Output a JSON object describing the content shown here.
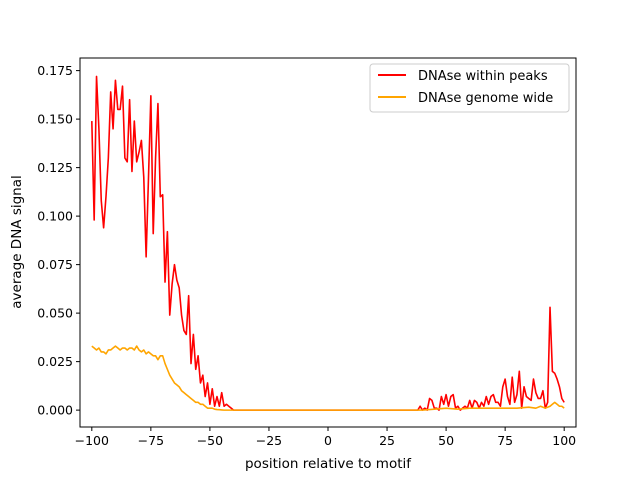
{
  "chart_data": {
    "type": "line",
    "title": "",
    "xlabel": "position relative to motif",
    "ylabel": "average DNA signal",
    "xlim": [
      -105,
      105
    ],
    "ylim": [
      -0.0087,
      0.1815
    ],
    "xticks": [
      -100,
      -75,
      -50,
      -25,
      0,
      25,
      50,
      75,
      100
    ],
    "xtick_labels": [
      "−100",
      "−75",
      "−50",
      "−25",
      "0",
      "25",
      "50",
      "75",
      "100"
    ],
    "yticks": [
      0.0,
      0.025,
      0.05,
      0.075,
      0.1,
      0.125,
      0.15,
      0.175
    ],
    "ytick_labels": [
      "0.000",
      "0.025",
      "0.050",
      "0.075",
      "0.100",
      "0.125",
      "0.150",
      "0.175"
    ],
    "grid": false,
    "legend_position": "top-right",
    "series": [
      {
        "name": "DNAse within peaks",
        "color": "#ff0000",
        "x": [
          -100,
          -99,
          -98,
          -97,
          -96,
          -95,
          -94,
          -93,
          -92,
          -91,
          -90,
          -89,
          -88,
          -87,
          -86,
          -85,
          -84,
          -83,
          -82,
          -81,
          -80,
          -79,
          -78,
          -77,
          -76,
          -75,
          -74,
          -73,
          -72,
          -71,
          -70,
          -69,
          -68,
          -67,
          -66,
          -65,
          -64,
          -63,
          -62,
          -61,
          -60,
          -59,
          -58,
          -57,
          -56,
          -55,
          -54,
          -53,
          -52,
          -51,
          -50,
          -49,
          -48,
          -47,
          -46,
          -45,
          -44,
          -43,
          -42,
          -41,
          -40,
          -39,
          -38,
          -37,
          -36,
          -35,
          -30,
          -20,
          -10,
          0,
          10,
          20,
          30,
          35,
          36,
          37,
          38,
          39,
          40,
          41,
          42,
          43,
          44,
          45,
          46,
          47,
          48,
          49,
          50,
          51,
          52,
          53,
          54,
          55,
          56,
          57,
          58,
          59,
          60,
          61,
          62,
          63,
          64,
          65,
          66,
          67,
          68,
          69,
          70,
          71,
          72,
          73,
          74,
          75,
          76,
          77,
          78,
          79,
          80,
          81,
          82,
          83,
          84,
          85,
          86,
          87,
          88,
          89,
          90,
          91,
          92,
          93,
          94,
          95,
          96,
          97,
          98,
          99,
          100
        ],
        "y": [
          0.149,
          0.098,
          0.172,
          0.145,
          0.108,
          0.094,
          0.11,
          0.13,
          0.164,
          0.145,
          0.17,
          0.155,
          0.155,
          0.167,
          0.13,
          0.128,
          0.16,
          0.123,
          0.149,
          0.128,
          0.133,
          0.139,
          0.12,
          0.079,
          0.12,
          0.162,
          0.091,
          0.13,
          0.158,
          0.11,
          0.111,
          0.066,
          0.092,
          0.049,
          0.065,
          0.075,
          0.067,
          0.063,
          0.049,
          0.041,
          0.039,
          0.059,
          0.024,
          0.039,
          0.021,
          0.028,
          0.014,
          0.018,
          0.007,
          0.014,
          0.003,
          0.011,
          0.002,
          0.007,
          0.002,
          0.009,
          0.002,
          0.003,
          0.002,
          0.001,
          0.0,
          0.0,
          0.0,
          0.0,
          0.0,
          0.0,
          0.0,
          0.0,
          0.0,
          0.0,
          0.0,
          0.0,
          0.0,
          0.0,
          0.0,
          0.0,
          0.0,
          0.002,
          0.0,
          0.001,
          0.0,
          0.006,
          0.005,
          0.001,
          0.001,
          0.0,
          0.007,
          0.003,
          0.008,
          0.002,
          0.007,
          0.008,
          0.001,
          0.002,
          0.0,
          0.001,
          0.002,
          0.001,
          0.005,
          0.001,
          0.005,
          0.004,
          0.001,
          0.004,
          0.002,
          0.007,
          0.003,
          0.007,
          0.008,
          0.004,
          0.004,
          0.002,
          0.012,
          0.016,
          0.007,
          0.003,
          0.017,
          0.004,
          0.008,
          0.02,
          0.001,
          0.012,
          0.007,
          0.006,
          0.005,
          0.016,
          0.009,
          0.006,
          0.006,
          0.01,
          0.001,
          0.004,
          0.053,
          0.02,
          0.019,
          0.016,
          0.012,
          0.006,
          0.004
        ]
      },
      {
        "name": "DNAse genome wide",
        "color": "#ffa500",
        "x": [
          -100,
          -99,
          -98,
          -97,
          -96,
          -95,
          -94,
          -93,
          -92,
          -91,
          -90,
          -89,
          -88,
          -87,
          -86,
          -85,
          -84,
          -83,
          -82,
          -81,
          -80,
          -79,
          -78,
          -77,
          -76,
          -75,
          -74,
          -73,
          -72,
          -71,
          -70,
          -69,
          -68,
          -67,
          -66,
          -65,
          -64,
          -63,
          -62,
          -61,
          -60,
          -59,
          -58,
          -57,
          -56,
          -55,
          -54,
          -53,
          -52,
          -51,
          -50,
          -49,
          -48,
          -47,
          -46,
          -45,
          -44,
          -43,
          -42,
          -41,
          -40,
          -39,
          -38,
          -37,
          -36,
          -35,
          -30,
          -20,
          -10,
          0,
          10,
          20,
          30,
          40,
          45,
          50,
          55,
          60,
          65,
          70,
          75,
          80,
          85,
          88,
          90,
          92,
          94,
          95,
          96,
          97,
          98,
          99,
          100
        ],
        "y": [
          0.033,
          0.032,
          0.031,
          0.032,
          0.03,
          0.03,
          0.029,
          0.031,
          0.031,
          0.032,
          0.033,
          0.032,
          0.031,
          0.032,
          0.032,
          0.031,
          0.032,
          0.032,
          0.031,
          0.033,
          0.031,
          0.03,
          0.031,
          0.029,
          0.03,
          0.029,
          0.028,
          0.028,
          0.026,
          0.028,
          0.028,
          0.024,
          0.021,
          0.018,
          0.016,
          0.014,
          0.013,
          0.012,
          0.01,
          0.009,
          0.008,
          0.007,
          0.006,
          0.005,
          0.004,
          0.004,
          0.003,
          0.003,
          0.002,
          0.001,
          0.001,
          0.001,
          0.0005,
          0.0003,
          0.0002,
          0.0001,
          0.0,
          0.0,
          0.0,
          0.0,
          0.0,
          0.0,
          0.0,
          0.0,
          0.0,
          0.0,
          0.0,
          0.0,
          0.0,
          0.0,
          0.0,
          0.0,
          0.0,
          0.0,
          0.0005,
          0.001,
          0.0005,
          0.001,
          0.001,
          0.001,
          0.001,
          0.001,
          0.0015,
          0.001,
          0.002,
          0.001,
          0.002,
          0.003,
          0.004,
          0.003,
          0.002,
          0.002,
          0.001
        ]
      }
    ]
  }
}
